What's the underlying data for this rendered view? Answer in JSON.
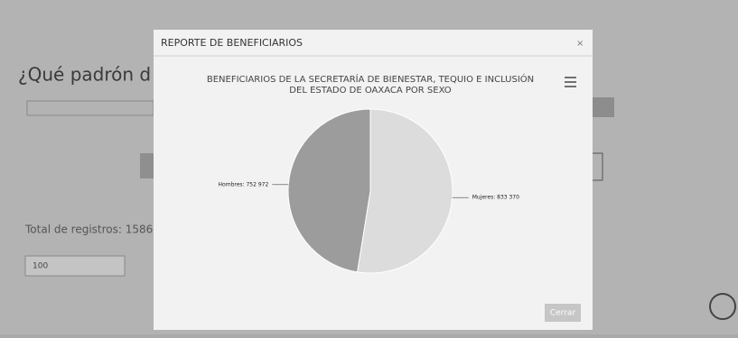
{
  "page": {
    "heading": "¿Qué padrón d",
    "total_records": "Total de registros: 1586",
    "page_size": "100"
  },
  "modal": {
    "title": "REPORTE DE BENEFICIARIOS",
    "close_icon": "×",
    "close_button": "Cerrar"
  },
  "chart_data": {
    "type": "pie",
    "title": [
      "BENEFICIARIOS DE LA SECRETARÍA DE BIENESTAR, TEQUIO E INCLUSIÓN",
      "DEL ESTADO DE OAXACA POR SEXO"
    ],
    "categories": [
      "Mujeres",
      "Hombres"
    ],
    "values": [
      833370,
      752972
    ],
    "value_labels": [
      "Mujeres: 833 370",
      "Hombres: 752 972"
    ],
    "colors": [
      "#dcdcdc",
      "#9c9c9c"
    ]
  }
}
